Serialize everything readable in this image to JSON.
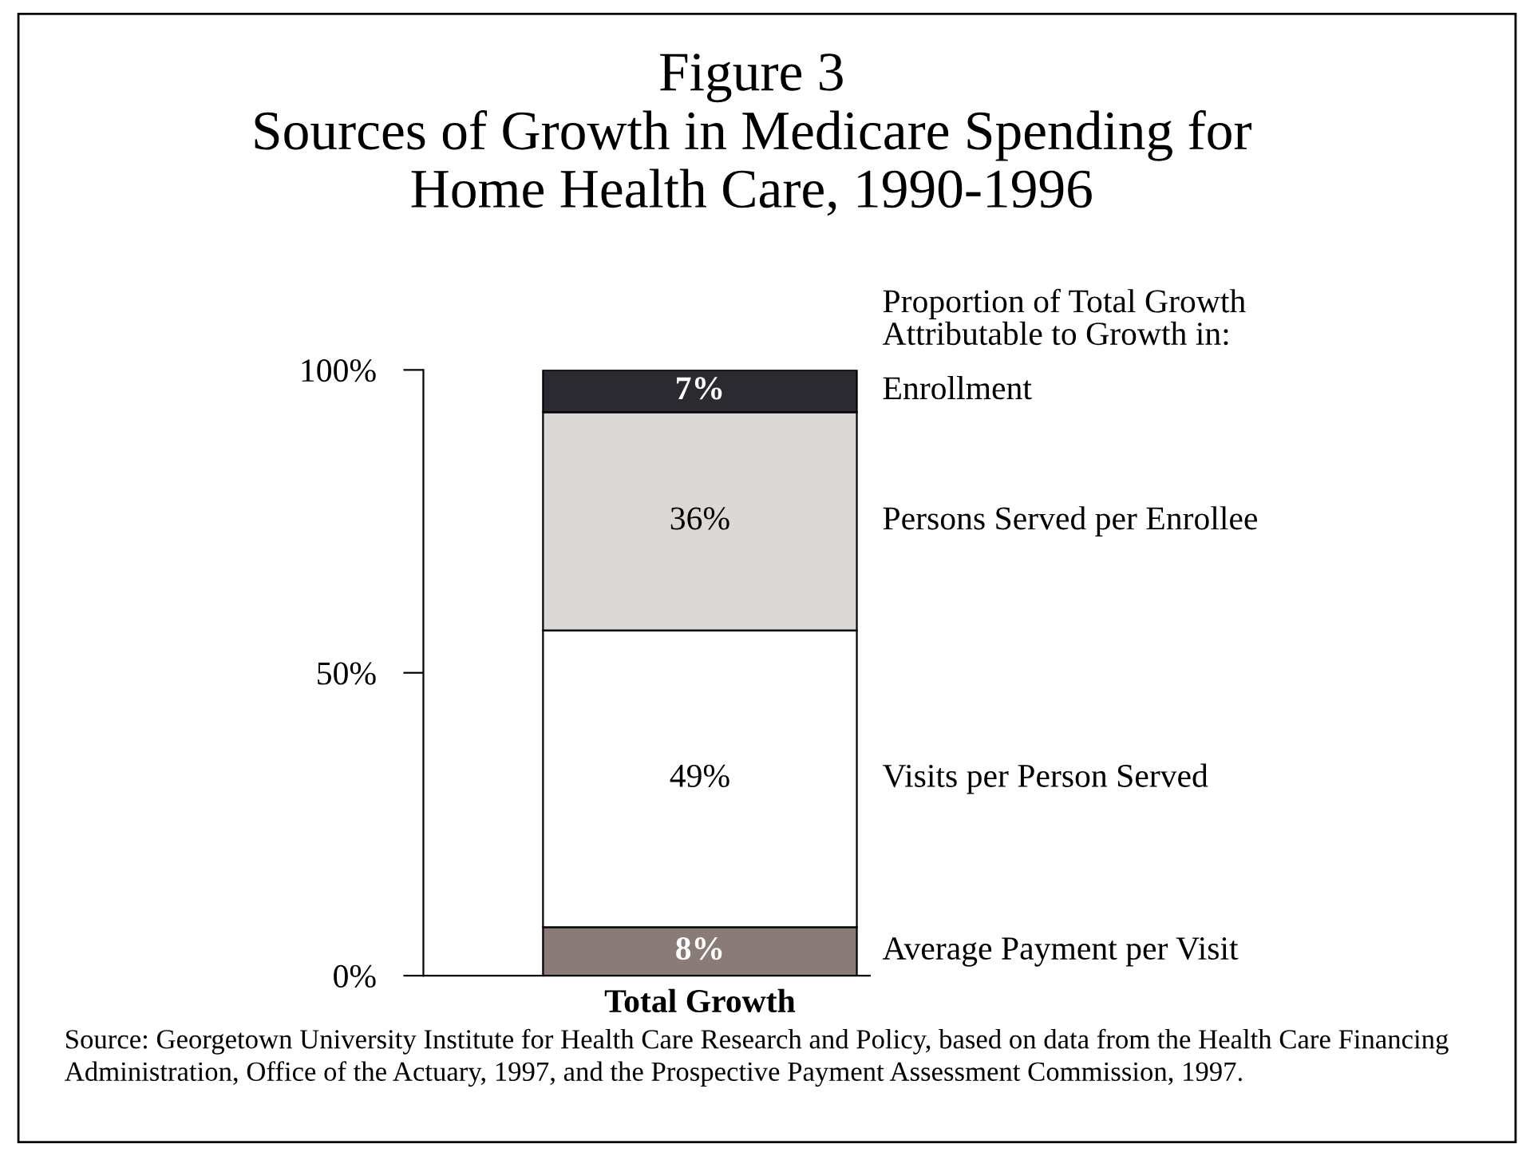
{
  "chart_data": {
    "type": "bar",
    "title": "Figure 3\nSources of Growth in Medicare Spending for\nHome Health Care, 1990-1996",
    "categories": [
      "Total Growth"
    ],
    "stacked": true,
    "legend_title": "Proportion of Total Growth\nAttributable to Growth in:",
    "series": [
      {
        "name": "Average Payment per Visit",
        "color": "#8b7b78",
        "values": [
          8
        ],
        "value_labels": [
          "8%"
        ]
      },
      {
        "name": "Visits per Person Served",
        "color": "#ffffff",
        "values": [
          49
        ],
        "value_labels": [
          "49%"
        ]
      },
      {
        "name": "Persons Served per Enrollee",
        "color": "#dcd8d6",
        "values": [
          36
        ],
        "value_labels": [
          "36%"
        ]
      },
      {
        "name": "Enrollment",
        "color": "#2b2a30",
        "values": [
          7
        ],
        "value_labels": [
          "7%"
        ]
      }
    ],
    "ylim": [
      0,
      100
    ],
    "yticks": [
      {
        "value": 0,
        "label": "0%"
      },
      {
        "value": 50,
        "label": "50%"
      },
      {
        "value": 100,
        "label": "100%"
      }
    ],
    "grid": false,
    "legend": false,
    "annotations": [
      "Source: Georgetown University Institute for Health Care Research and Policy, based on data from the Health Care Financing Administration, Office of the Actuary, 1997, and the Prospective Payment Assessment Commission, 1997."
    ]
  }
}
